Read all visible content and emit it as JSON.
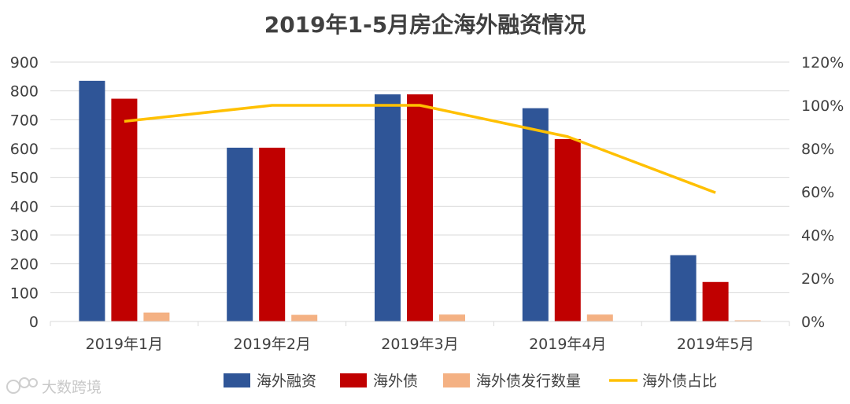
{
  "chart_data": {
    "type": "bar",
    "title": "2019年1-5月房企海外融资情况",
    "categories": [
      "2019年1月",
      "2019年2月",
      "2019年3月",
      "2019年4月",
      "2019年5月"
    ],
    "series": [
      {
        "name": "海外融资",
        "type": "bar",
        "axis": "left",
        "color": "#2f5597",
        "values": [
          835,
          603,
          788,
          740,
          230
        ]
      },
      {
        "name": "海外债",
        "type": "bar",
        "axis": "left",
        "color": "#c00000",
        "values": [
          773,
          603,
          788,
          633,
          137
        ]
      },
      {
        "name": "海外债发行数量",
        "type": "bar",
        "axis": "left",
        "color": "#f4b183",
        "values": [
          31,
          23,
          24,
          24,
          4
        ]
      },
      {
        "name": "海外债占比",
        "type": "line",
        "axis": "right",
        "color": "#ffc000",
        "values": [
          92.6,
          100,
          100,
          85.5,
          59.6
        ]
      }
    ],
    "ylim_left": [
      0,
      900
    ],
    "yticks_left": [
      0,
      100,
      200,
      300,
      400,
      500,
      600,
      700,
      800,
      900
    ],
    "yticklabels_left": [
      "0",
      "100",
      "200",
      "300",
      "400",
      "500",
      "600",
      "700",
      "800",
      "900"
    ],
    "ylim_right": [
      0,
      120
    ],
    "yticks_right": [
      0,
      20,
      40,
      60,
      80,
      100,
      120
    ],
    "yticklabels_right": [
      "0%",
      "20%",
      "40%",
      "60%",
      "80%",
      "100%",
      "120%"
    ],
    "grid": true,
    "legend_position": "bottom"
  },
  "watermark": {
    "text": "大数跨境"
  }
}
